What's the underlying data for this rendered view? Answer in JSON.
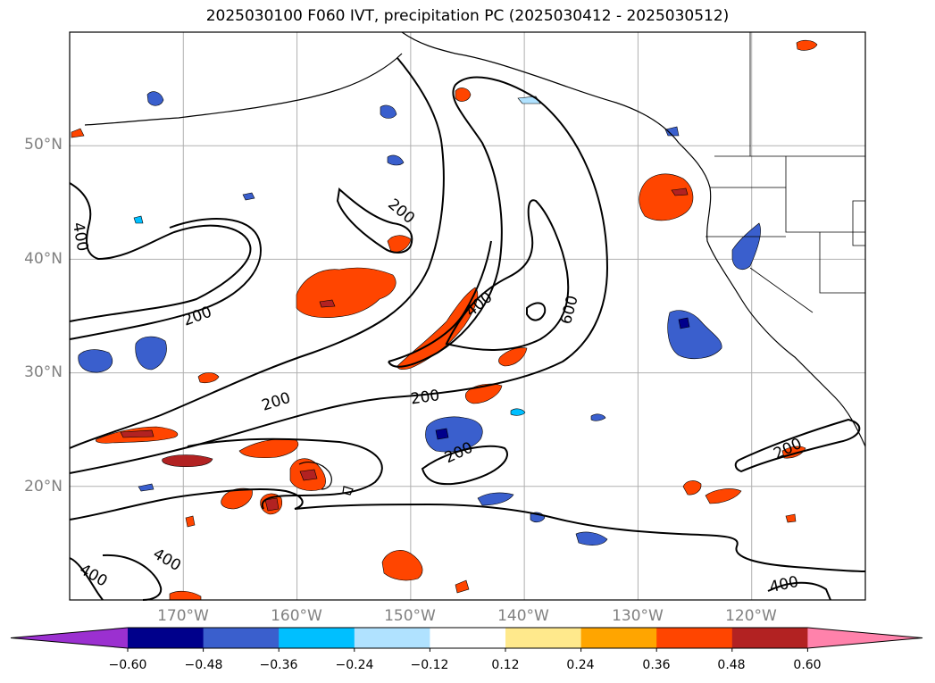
{
  "title": "2025030100 F060 IVT, precipitation PC (2025030412 - 2025030512)",
  "map": {
    "lat_labels": [
      "50°N",
      "40°N",
      "30°N",
      "20°N"
    ],
    "lon_labels": [
      "170°W",
      "160°W",
      "150°W",
      "140°W",
      "130°W",
      "120°W"
    ],
    "lat_values": [
      50,
      40,
      30,
      20
    ],
    "lon_values": [
      -170,
      -160,
      -150,
      -140,
      -130,
      -120
    ],
    "extent": {
      "lon_min": -180,
      "lon_max": -110,
      "lat_min": 10,
      "lat_max": 60
    },
    "contour_labels": [
      "400",
      "200",
      "200",
      "200",
      "200",
      "400",
      "600",
      "200",
      "200",
      "400",
      "400",
      "400"
    ],
    "grid": true
  },
  "colorbar": {
    "ticks": [
      "−0.60",
      "−0.48",
      "−0.36",
      "−0.24",
      "−0.12",
      "0.12",
      "0.24",
      "0.36",
      "0.48",
      "0.60"
    ],
    "colors": [
      "#9b30d0",
      "#00008b",
      "#3a5fcd",
      "#00bfff",
      "#b0e2ff",
      "#ffffff",
      "#ffe98c",
      "#ffa500",
      "#ff4500",
      "#b22222",
      "#ff82ab"
    ]
  },
  "chart_data": {
    "type": "heatmap",
    "title": "2025030100 F060 IVT, precipitation PC (2025030412 - 2025030512)",
    "variable_contours": "IVT",
    "contour_levels": [
      200,
      400,
      600
    ],
    "color_levels": [
      -0.6,
      -0.48,
      -0.36,
      -0.24,
      -0.12,
      0.12,
      0.24,
      0.36,
      0.48,
      0.6
    ],
    "lon_range": [
      -180,
      -110
    ],
    "lat_range": [
      10,
      60
    ],
    "xticks": [
      "170°W",
      "160°W",
      "150°W",
      "140°W",
      "130°W",
      "120°W"
    ],
    "yticks": [
      "50°N",
      "40°N",
      "30°N",
      "20°N"
    ]
  }
}
